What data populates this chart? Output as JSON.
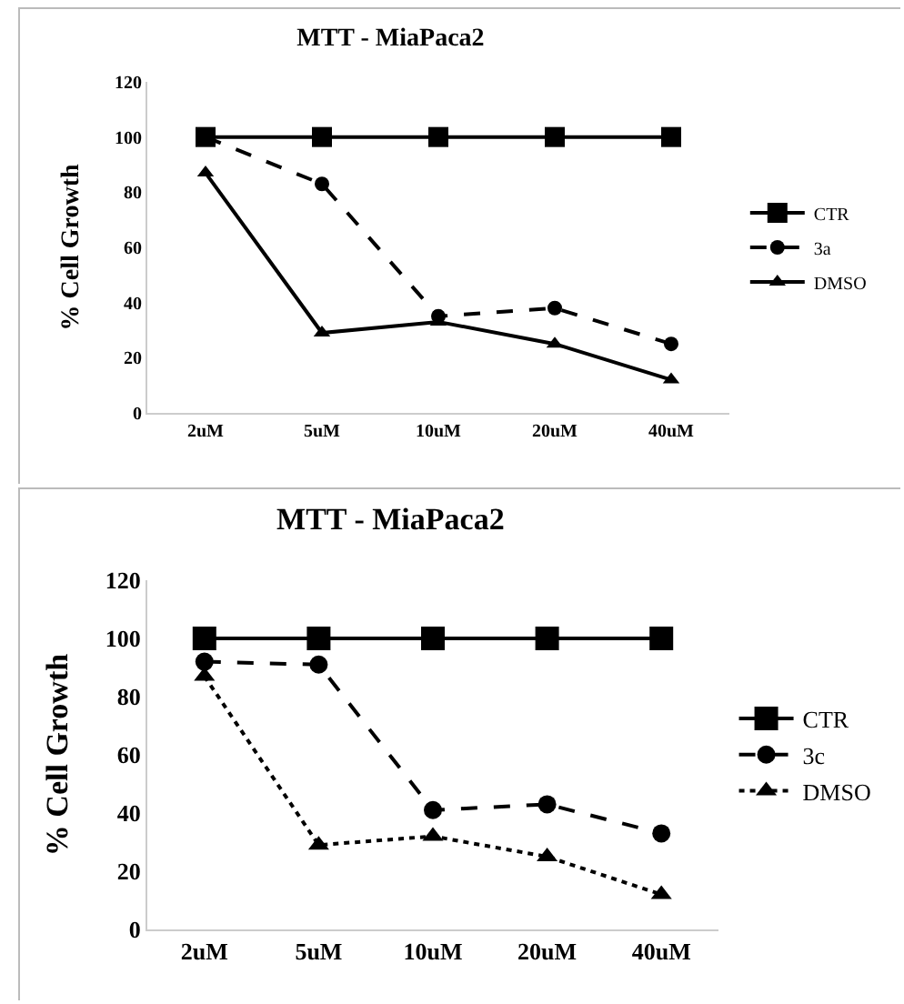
{
  "chart_data": [
    {
      "type": "line",
      "title": "MTT - MiaPaca2",
      "ylabel": "% Cell Growth",
      "categories": [
        "2uM",
        "5uM",
        "10uM",
        "20uM",
        "40uM"
      ],
      "ylim": [
        0,
        120
      ],
      "yticks": [
        0,
        20,
        40,
        60,
        80,
        100,
        120
      ],
      "grid": false,
      "legend": "right",
      "series": [
        {
          "name": "CTR",
          "color": "#000000",
          "marker": "square",
          "line_style": "solid",
          "values": [
            100,
            100,
            100,
            100,
            100
          ]
        },
        {
          "name": "3a",
          "color": "#000000",
          "marker": "circle",
          "line_style": "dashed",
          "values": [
            100,
            83,
            35,
            38,
            25
          ]
        },
        {
          "name": "DMSO",
          "color": "#000000",
          "marker": "triangle",
          "line_style": "solid",
          "values": [
            87,
            29,
            33,
            25,
            12
          ]
        }
      ]
    },
    {
      "type": "line",
      "title": "MTT - MiaPaca2",
      "ylabel": "% Cell Growth",
      "categories": [
        "2uM",
        "5uM",
        "10uM",
        "20uM",
        "40uM"
      ],
      "ylim": [
        0,
        120
      ],
      "yticks": [
        0,
        20,
        40,
        60,
        80,
        100,
        120
      ],
      "grid": false,
      "legend": "right",
      "series": [
        {
          "name": "CTR",
          "color": "#000000",
          "marker": "square",
          "line_style": "solid",
          "values": [
            100,
            100,
            100,
            100,
            100
          ]
        },
        {
          "name": "3c",
          "color": "#000000",
          "marker": "circle",
          "line_style": "dashed",
          "values": [
            92,
            91,
            41,
            43,
            33
          ]
        },
        {
          "name": "DMSO",
          "color": "#000000",
          "marker": "triangle",
          "line_style": "dotted",
          "values": [
            87,
            29,
            32,
            25,
            12
          ]
        }
      ]
    }
  ]
}
